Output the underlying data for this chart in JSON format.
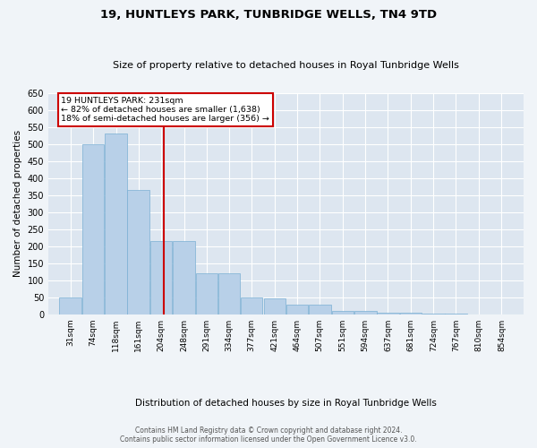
{
  "title": "19, HUNTLEYS PARK, TUNBRIDGE WELLS, TN4 9TD",
  "subtitle": "Size of property relative to detached houses in Royal Tunbridge Wells",
  "xlabel": "Distribution of detached houses by size in Royal Tunbridge Wells",
  "ylabel": "Number of detached properties",
  "footer1": "Contains HM Land Registry data © Crown copyright and database right 2024.",
  "footer2": "Contains public sector information licensed under the Open Government Licence v3.0.",
  "property_size": 231,
  "property_label": "19 HUNTLEYS PARK: 231sqm",
  "annotation_line1": "← 82% of detached houses are smaller (1,638)",
  "annotation_line2": "18% of semi-detached houses are larger (356) →",
  "bar_color": "#b8d0e8",
  "bar_edge_color": "#7aafd4",
  "marker_color": "#cc0000",
  "annotation_box_color": "#ffffff",
  "annotation_box_edge": "#cc0000",
  "fig_background": "#f0f4f8",
  "plot_background": "#dde6f0",
  "grid_color": "#ffffff",
  "bins_left": [
    31,
    74,
    118,
    161,
    204,
    248,
    291,
    334,
    377,
    421,
    464,
    507,
    551,
    594,
    637,
    681,
    724,
    767,
    810,
    854
  ],
  "bin_width": 43,
  "counts": [
    50,
    500,
    530,
    365,
    215,
    215,
    120,
    120,
    50,
    48,
    30,
    30,
    10,
    10,
    6,
    5,
    2,
    2,
    1,
    1
  ],
  "ylim": [
    0,
    650
  ],
  "yticks": [
    0,
    50,
    100,
    150,
    200,
    250,
    300,
    350,
    400,
    450,
    500,
    550,
    600,
    650
  ]
}
